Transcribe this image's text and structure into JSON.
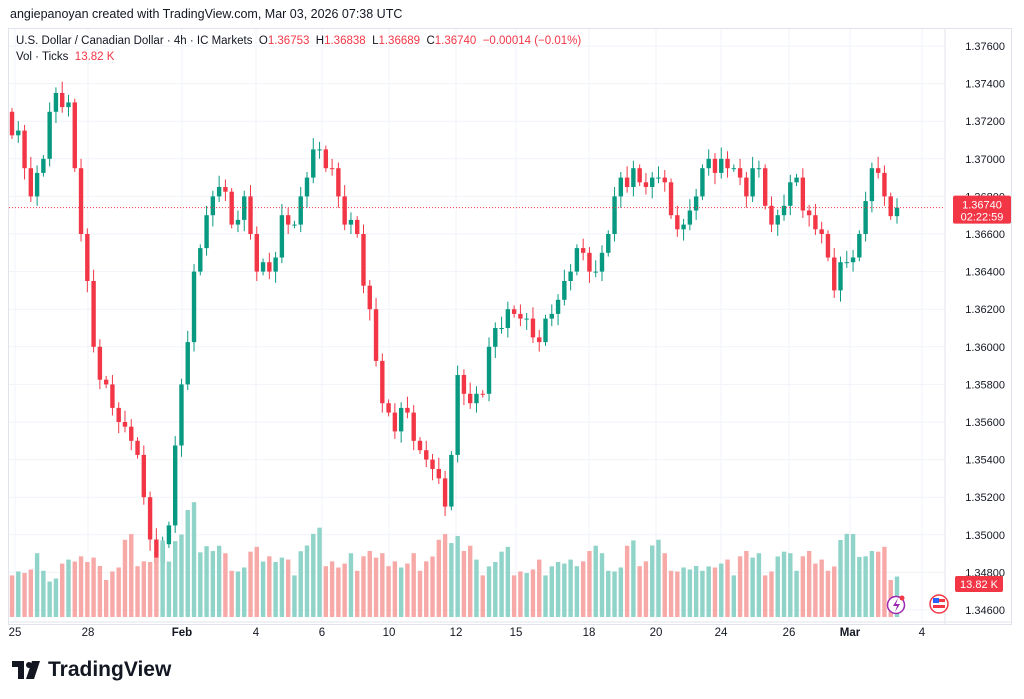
{
  "credit": "angiepanoyan created with TradingView.com, Mar 03, 2026 07:38 UTC",
  "legend": {
    "symbol": "U.S. Dollar / Canadian Dollar · 4h · IC Markets",
    "o_label": "O",
    "o": "1.36753",
    "h_label": "H",
    "h": "1.36838",
    "l_label": "L",
    "l": "1.36689",
    "c_label": "C",
    "c": "1.36740",
    "change": "−0.00014 (−0.01%)",
    "vol_label": "Vol · Ticks",
    "vol": "13.82 K"
  },
  "price_tag": {
    "price": "1.36740",
    "countdown": "02:22:59"
  },
  "vol_tag": "13.82 K",
  "logo": "TradingView",
  "colors": {
    "up": "#089981",
    "down": "#f23645",
    "vol_up": "#8fd3c9",
    "vol_down": "#f7a9a7"
  },
  "chart_data": {
    "type": "candlestick",
    "ylim": [
      1.346,
      1.377
    ],
    "yticks": [
      "1.37600",
      "1.37400",
      "1.37200",
      "1.37000",
      "1.36800",
      "1.36600",
      "1.36400",
      "1.36200",
      "1.36000",
      "1.35800",
      "1.35600",
      "1.35400",
      "1.35200",
      "1.35000",
      "1.34800",
      "1.34600"
    ],
    "xticks": [
      "25",
      "28",
      "Feb",
      "4",
      "6",
      "10",
      "12",
      "15",
      "18",
      "20",
      "24",
      "26",
      "Mar",
      "4"
    ],
    "closes": [
      1.3715,
      1.368,
      1.37,
      1.3735,
      1.373,
      1.366,
      1.36,
      1.358,
      1.356,
      1.355,
      1.352,
      1.3485,
      1.3505,
      1.358,
      1.364,
      1.367,
      1.3685,
      1.3665,
      1.368,
      1.364,
      1.364,
      1.367,
      1.3665,
      1.369,
      1.3705,
      1.3695,
      1.3665,
      1.366,
      1.362,
      1.357,
      1.3555,
      1.3565,
      1.3545,
      1.3535,
      1.3515,
      1.3585,
      1.357,
      1.3575,
      1.361,
      1.362,
      1.3615,
      1.3605,
      1.3615,
      1.3625,
      1.364,
      1.365,
      1.364,
      1.366,
      1.369,
      1.3695,
      1.3685,
      1.369,
      1.367,
      1.3665,
      1.368,
      1.37,
      1.37,
      1.3695,
      1.368,
      1.3695,
      1.3665,
      1.3675,
      1.369,
      1.367,
      1.366,
      1.363,
      1.3645,
      1.366,
      1.3695,
      1.368,
      1.3674
    ],
    "volumes": [
      9,
      8,
      10,
      7,
      9,
      12,
      10,
      8,
      9,
      13,
      11,
      10,
      12,
      15,
      18,
      14,
      12,
      10,
      9,
      11,
      12,
      10,
      9,
      13,
      14,
      11,
      9,
      10,
      12,
      10,
      11,
      9,
      10,
      11,
      13,
      16,
      12,
      9,
      10,
      11,
      9,
      8,
      9,
      10,
      9,
      11,
      12,
      10,
      9,
      12,
      11,
      13,
      10,
      9,
      8,
      10,
      9,
      9,
      12,
      10,
      9,
      11,
      10,
      12,
      9,
      10,
      14,
      13,
      12,
      11,
      8
    ]
  }
}
